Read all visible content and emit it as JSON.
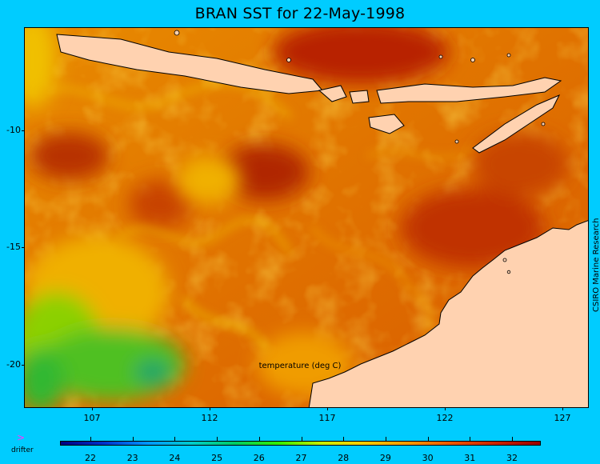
{
  "title": "BRAN SST for 22-May-1998",
  "map": {
    "x_ticks": [
      "107",
      "112",
      "117",
      "122",
      "127"
    ],
    "y_ticks": [
      "-10",
      "-15",
      "-20"
    ],
    "colors": {
      "background": "#00ccff",
      "land": "#ffd2b0",
      "warm": "#b01800",
      "cool": "#30c020"
    }
  },
  "colorbar": {
    "label": "temperature (deg C)",
    "ticks": [
      "22",
      "23",
      "24",
      "25",
      "26",
      "27",
      "28",
      "29",
      "30",
      "31",
      "32"
    ],
    "gradient": [
      "#000080",
      "#0033cc",
      "#0099ff",
      "#00cccc",
      "#00cc66",
      "#33ee00",
      "#ccee00",
      "#ffcc00",
      "#ff9900",
      "#ee5500",
      "#cc2200",
      "#990000"
    ]
  },
  "legend": {
    "marker": ">",
    "label": "drifter"
  },
  "credit": "CSIRO Marine Research"
}
